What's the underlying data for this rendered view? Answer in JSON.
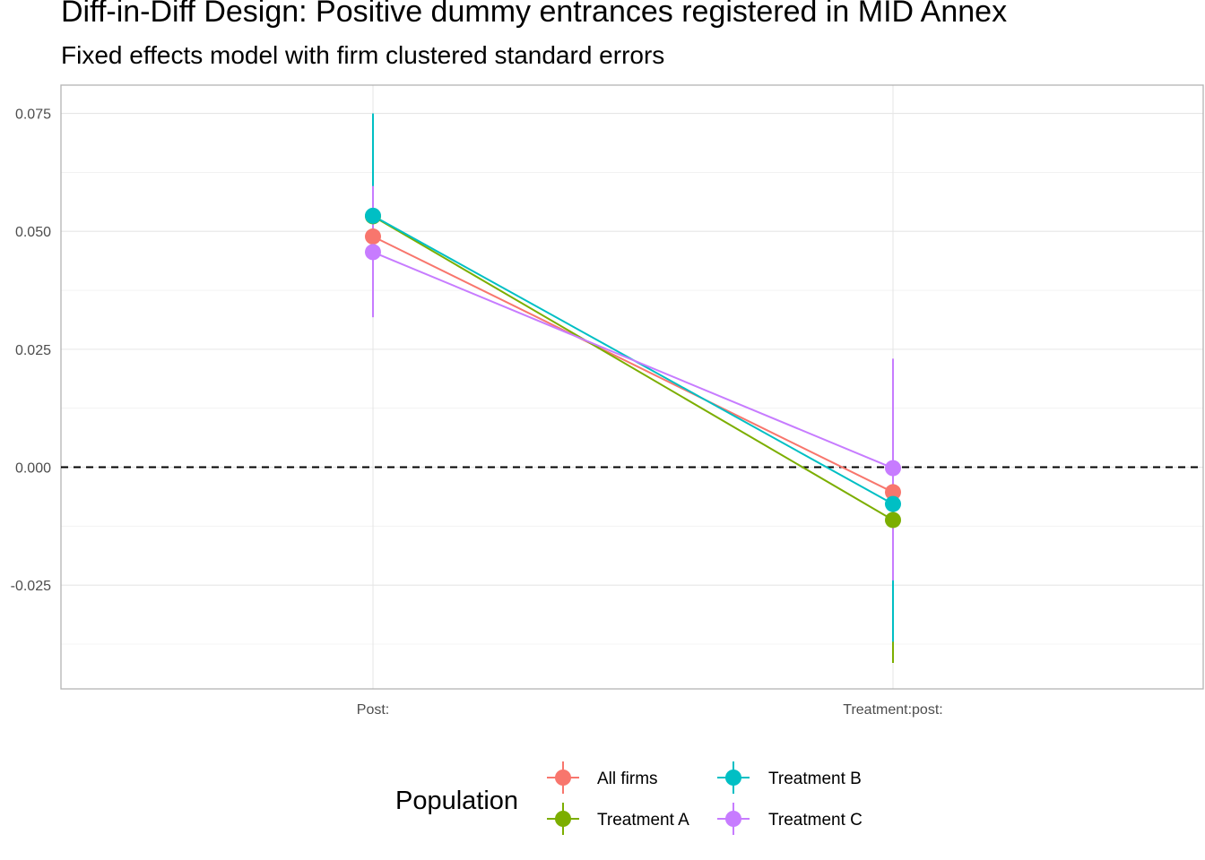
{
  "chart_data": {
    "type": "scatter",
    "title": "Diff-in-Diff Design: Positive dummy entrances registered in MID Annex",
    "subtitle": "Fixed effects model with firm clustered standard errors",
    "xlabel": "",
    "ylabel": "",
    "categories": [
      "Post:",
      "Treatment:post:"
    ],
    "ylim": [
      -0.047,
      0.081
    ],
    "yticks": [
      -0.025,
      0.0,
      0.025,
      0.05,
      0.075
    ],
    "ytick_labels": [
      "-0.025",
      "0.000",
      "0.025",
      "0.050",
      "0.075"
    ],
    "reference_line": {
      "y": 0.0,
      "style": "dashed"
    },
    "grid": true,
    "legend": {
      "title": "Population",
      "placement": "bottom"
    },
    "series": [
      {
        "name": "All firms",
        "color": "#F8766D",
        "values": [
          0.0489,
          -0.0053
        ],
        "lower": [
          0.0449,
          -0.0083
        ],
        "upper": [
          0.0529,
          -0.0023
        ]
      },
      {
        "name": "Treatment A",
        "color": "#7CAE00",
        "values": [
          0.0532,
          -0.0112
        ],
        "lower": [
          0.0512,
          -0.0415
        ],
        "upper": [
          0.0552,
          -0.0082
        ]
      },
      {
        "name": "Treatment B",
        "color": "#00BFC4",
        "values": [
          0.0533,
          -0.0078
        ],
        "lower": [
          0.0455,
          -0.037
        ],
        "upper": [
          0.075,
          -0.0058
        ]
      },
      {
        "name": "Treatment C",
        "color": "#C77CFF",
        "values": [
          0.0456,
          -0.0002
        ],
        "lower": [
          0.0318,
          -0.024
        ],
        "upper": [
          0.0596,
          0.023
        ]
      }
    ]
  }
}
